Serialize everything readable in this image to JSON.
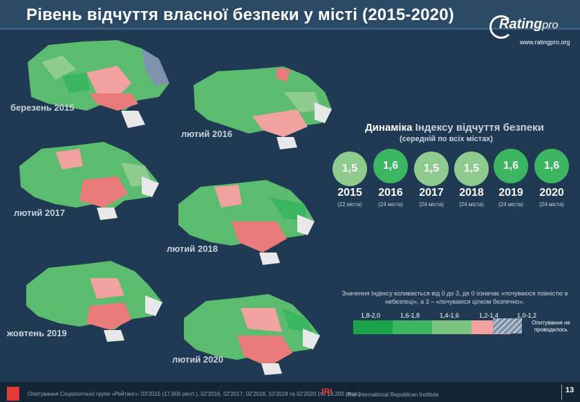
{
  "header": {
    "title": "Рівень відчуття власної безпеки у місті (2015-2020)",
    "logo": {
      "main": "Rating",
      "suffix": "pro",
      "url": "www.ratingpro.org"
    }
  },
  "maps": [
    {
      "caption": "березень 2015"
    },
    {
      "caption": "лютий 2016"
    },
    {
      "caption": "лютий 2017"
    },
    {
      "caption": "лютий 2018"
    },
    {
      "caption": "жовтень 2019"
    },
    {
      "caption": "лютий 2020"
    }
  ],
  "dynamics": {
    "title_part1": "Динаміка",
    "title_part2": "Індексу відчуття безпеки",
    "subtitle": "(середній по всіх містах)",
    "items": [
      {
        "value": "1,5",
        "year": "2015",
        "cities": "(22 міста)",
        "color": "#8fcb8f"
      },
      {
        "value": "1,6",
        "year": "2016",
        "cities": "(24 міста)",
        "color": "#3cb561"
      },
      {
        "value": "1,5",
        "year": "2017",
        "cities": "(24 міста)",
        "color": "#8fcb8f"
      },
      {
        "value": "1,5",
        "year": "2018",
        "cities": "(24 міста)",
        "color": "#8fcb8f"
      },
      {
        "value": "1,6",
        "year": "2019",
        "cities": "(24 міста)",
        "color": "#3cb561"
      },
      {
        "value": "1,6",
        "year": "2020",
        "cities": "(24 міста)",
        "color": "#3cb561"
      }
    ]
  },
  "legend": {
    "note": "Значення Індексу коливається від 0 до 3, де 0 означає «почуваюся повністю в небезпеці», а 3 – «почуваюся цілком безпечно».",
    "items": [
      {
        "label": "1,8-2,0",
        "color": "#1aa34a"
      },
      {
        "label": "1,6-1,8",
        "color": "#3cb561"
      },
      {
        "label": "1,4-1,6",
        "color": "#7ac47f"
      },
      {
        "label": "1,2-1,4",
        "color": "#f2a1a1"
      },
      {
        "label": "1,0-1,2",
        "color": "#e97b7b"
      }
    ],
    "na_label": "Опитування не проводилось",
    "na_color": "#7f93ad"
  },
  "footer": {
    "text": "Опитування Соціологічної групи «Рейтинг»: 03'2015 (17,600 респ.), 02'2016, 02'2017, 02'2018, 10'2019 та 02'2020 (по 19,200 респ.)",
    "iri": "IRI",
    "iri_text": "The International Republican Institute",
    "page": "13"
  }
}
